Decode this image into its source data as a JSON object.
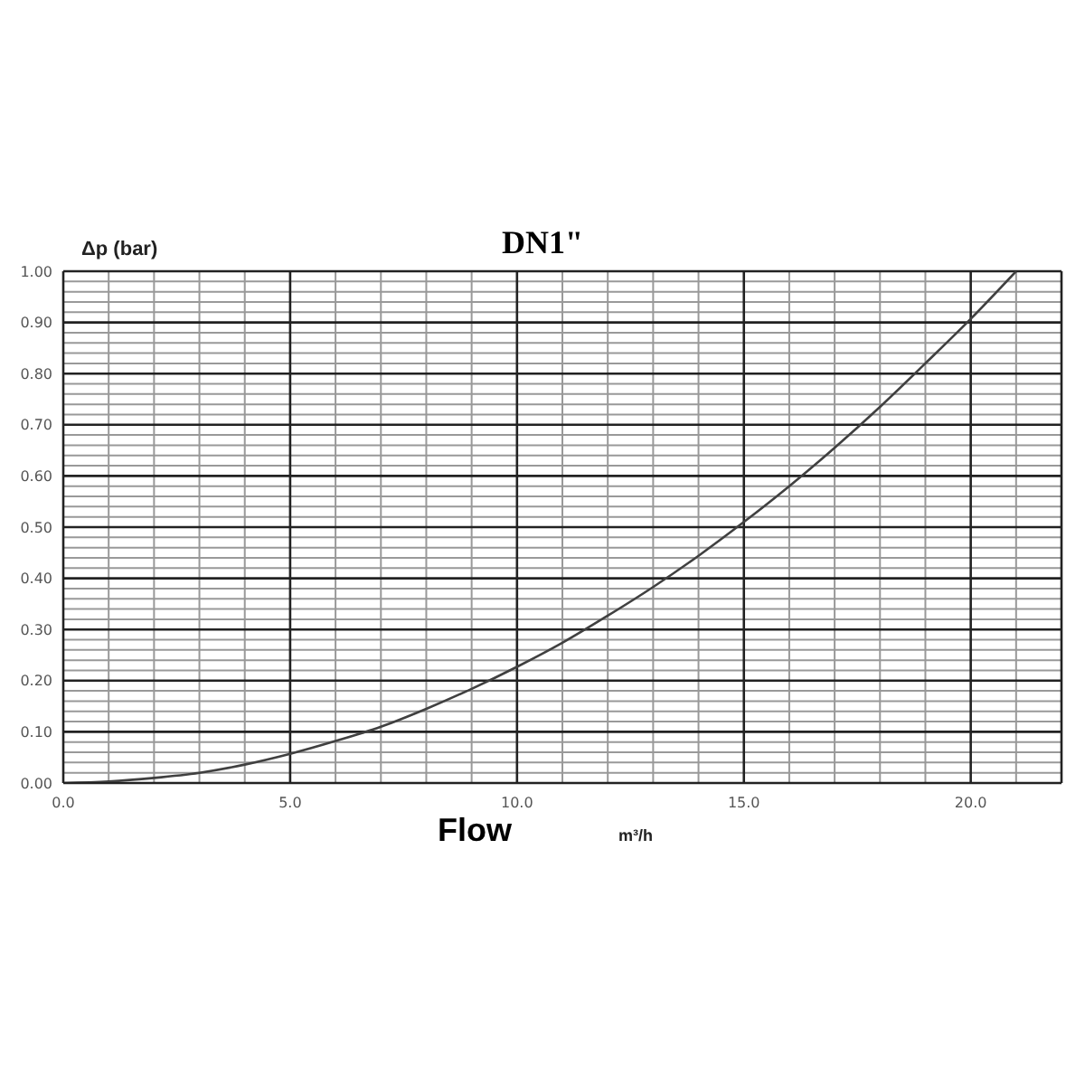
{
  "chart_data": {
    "type": "line",
    "title": "DN1\"",
    "xlabel": "Flow",
    "ylabel": "Δp (bar)",
    "annotations": [
      "m³/h"
    ],
    "x": [
      0,
      1,
      2,
      3,
      4,
      5,
      6,
      7,
      8,
      9,
      10,
      11,
      12,
      13,
      14,
      15,
      16,
      17,
      18,
      19,
      20,
      21
    ],
    "series": [
      {
        "color": "#404040",
        "values": [
          0,
          0.003,
          0.01,
          0.02,
          0.036,
          0.057,
          0.082,
          0.11,
          0.145,
          0.184,
          0.227,
          0.274,
          0.327,
          0.383,
          0.444,
          0.51,
          0.58,
          0.655,
          0.735,
          0.82,
          0.907,
          1.0
        ]
      }
    ],
    "xlim": [
      0,
      22
    ],
    "xticks": [
      {
        "value": 0,
        "label": "0.0"
      },
      {
        "value": 1,
        "label": null
      },
      {
        "value": 2,
        "label": null
      },
      {
        "value": 3,
        "label": null
      },
      {
        "value": 4,
        "label": null
      },
      {
        "value": 5,
        "label": "5.0"
      },
      {
        "value": 6,
        "label": null
      },
      {
        "value": 7,
        "label": null
      },
      {
        "value": 8,
        "label": null
      },
      {
        "value": 9,
        "label": null
      },
      {
        "value": 10,
        "label": "10.0"
      },
      {
        "value": 11,
        "label": null
      },
      {
        "value": 12,
        "label": null
      },
      {
        "value": 13,
        "label": null
      },
      {
        "value": 14,
        "label": null
      },
      {
        "value": 15,
        "label": "15.0"
      },
      {
        "value": 16,
        "label": null
      },
      {
        "value": 17,
        "label": null
      },
      {
        "value": 18,
        "label": null
      },
      {
        "value": 19,
        "label": null
      },
      {
        "value": 20,
        "label": "20.0"
      },
      {
        "value": 21,
        "label": null
      },
      {
        "value": 22,
        "label": null
      }
    ],
    "ylim": [
      0,
      1
    ],
    "yticks": [
      {
        "value": 0,
        "label": "0.00"
      },
      {
        "value": 0.02,
        "label": null
      },
      {
        "value": 0.04,
        "label": null
      },
      {
        "value": 0.06,
        "label": null
      },
      {
        "value": 0.08,
        "label": null
      },
      {
        "value": 0.1,
        "label": "0.10"
      },
      {
        "value": 0.12,
        "label": null
      },
      {
        "value": 0.14,
        "label": null
      },
      {
        "value": 0.16,
        "label": null
      },
      {
        "value": 0.18,
        "label": null
      },
      {
        "value": 0.2,
        "label": "0.20"
      },
      {
        "value": 0.22,
        "label": null
      },
      {
        "value": 0.24,
        "label": null
      },
      {
        "value": 0.26,
        "label": null
      },
      {
        "value": 0.28,
        "label": null
      },
      {
        "value": 0.3,
        "label": "0.30"
      },
      {
        "value": 0.32,
        "label": null
      },
      {
        "value": 0.34,
        "label": null
      },
      {
        "value": 0.36,
        "label": null
      },
      {
        "value": 0.38,
        "label": null
      },
      {
        "value": 0.4,
        "label": "0.40"
      },
      {
        "value": 0.42,
        "label": null
      },
      {
        "value": 0.44,
        "label": null
      },
      {
        "value": 0.46,
        "label": null
      },
      {
        "value": 0.48,
        "label": null
      },
      {
        "value": 0.5,
        "label": "0.50"
      },
      {
        "value": 0.52,
        "label": null
      },
      {
        "value": 0.54,
        "label": null
      },
      {
        "value": 0.56,
        "label": null
      },
      {
        "value": 0.58,
        "label": null
      },
      {
        "value": 0.6,
        "label": "0.60"
      },
      {
        "value": 0.62,
        "label": null
      },
      {
        "value": 0.64,
        "label": null
      },
      {
        "value": 0.66,
        "label": null
      },
      {
        "value": 0.68,
        "label": null
      },
      {
        "value": 0.7,
        "label": "0.70"
      },
      {
        "value": 0.72,
        "label": null
      },
      {
        "value": 0.74,
        "label": null
      },
      {
        "value": 0.76,
        "label": null
      },
      {
        "value": 0.78,
        "label": null
      },
      {
        "value": 0.8,
        "label": "0.80"
      },
      {
        "value": 0.82,
        "label": null
      },
      {
        "value": 0.84,
        "label": null
      },
      {
        "value": 0.86,
        "label": null
      },
      {
        "value": 0.88,
        "label": null
      },
      {
        "value": 0.9,
        "label": "0.90"
      },
      {
        "value": 0.92,
        "label": null
      },
      {
        "value": 0.94,
        "label": null
      },
      {
        "value": 0.96,
        "label": null
      },
      {
        "value": 0.98,
        "label": null
      },
      {
        "value": 1,
        "label": "1.00"
      }
    ],
    "grid": true,
    "marker": "none",
    "line_style": "solid"
  }
}
